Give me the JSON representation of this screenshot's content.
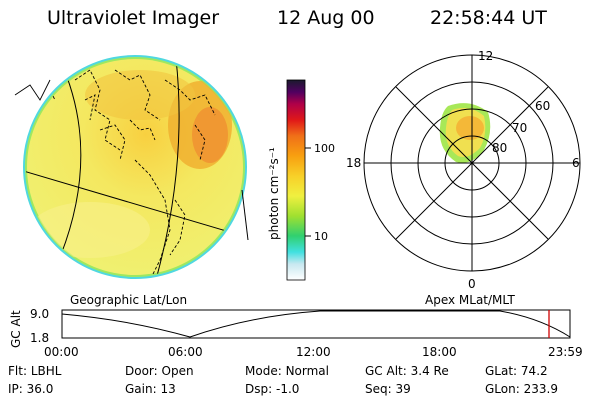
{
  "header": {
    "instrument": "Ultraviolet Imager",
    "date": "12 Aug 00",
    "time": "22:58:44 UT"
  },
  "colorbar": {
    "unit_label": "photon cm⁻²s⁻¹",
    "ticks": [
      {
        "label": "100",
        "value": 100
      },
      {
        "label": "10",
        "value": 10
      }
    ],
    "colors": [
      "#ffffff",
      "#c8e8f0",
      "#40e0e0",
      "#30d070",
      "#a0e030",
      "#f0f040",
      "#f8d028",
      "#f8a010",
      "#f07018",
      "#e01818",
      "#b00048",
      "#500060",
      "#1a1a2e"
    ]
  },
  "geo_panel": {
    "label": "Geographic Lat/Lon"
  },
  "polar_panel": {
    "label": "Apex MLat/MLT",
    "mlt_labels": {
      "top": "12",
      "right": "6",
      "left": "18",
      "bottom": "0"
    },
    "lat_labels": [
      "60",
      "70",
      "80"
    ]
  },
  "timeline": {
    "axis_label": "GC Alt",
    "y_ticks": [
      "9.0",
      "1.8"
    ],
    "x_ticks": [
      "00:00",
      "06:00",
      "12:00",
      "18:00",
      "23:59"
    ],
    "current_time_marker": "22:58",
    "marker_color": "#d00000"
  },
  "status": {
    "row1": [
      {
        "key": "Flt:",
        "value": "LBHL"
      },
      {
        "key": "Door:",
        "value": "Open"
      },
      {
        "key": "Mode:",
        "value": "Normal"
      },
      {
        "key": "GC Alt:",
        "value": "3.4 Re"
      },
      {
        "key": "GLat:",
        "value": "74.2"
      }
    ],
    "row2": [
      {
        "key": "IP:",
        "value": "36.0"
      },
      {
        "key": "Gain:",
        "value": "13"
      },
      {
        "key": "Dsp:",
        "value": "-1.0"
      },
      {
        "key": "Seq:",
        "value": "39"
      },
      {
        "key": "GLon:",
        "value": "233.9"
      }
    ]
  }
}
